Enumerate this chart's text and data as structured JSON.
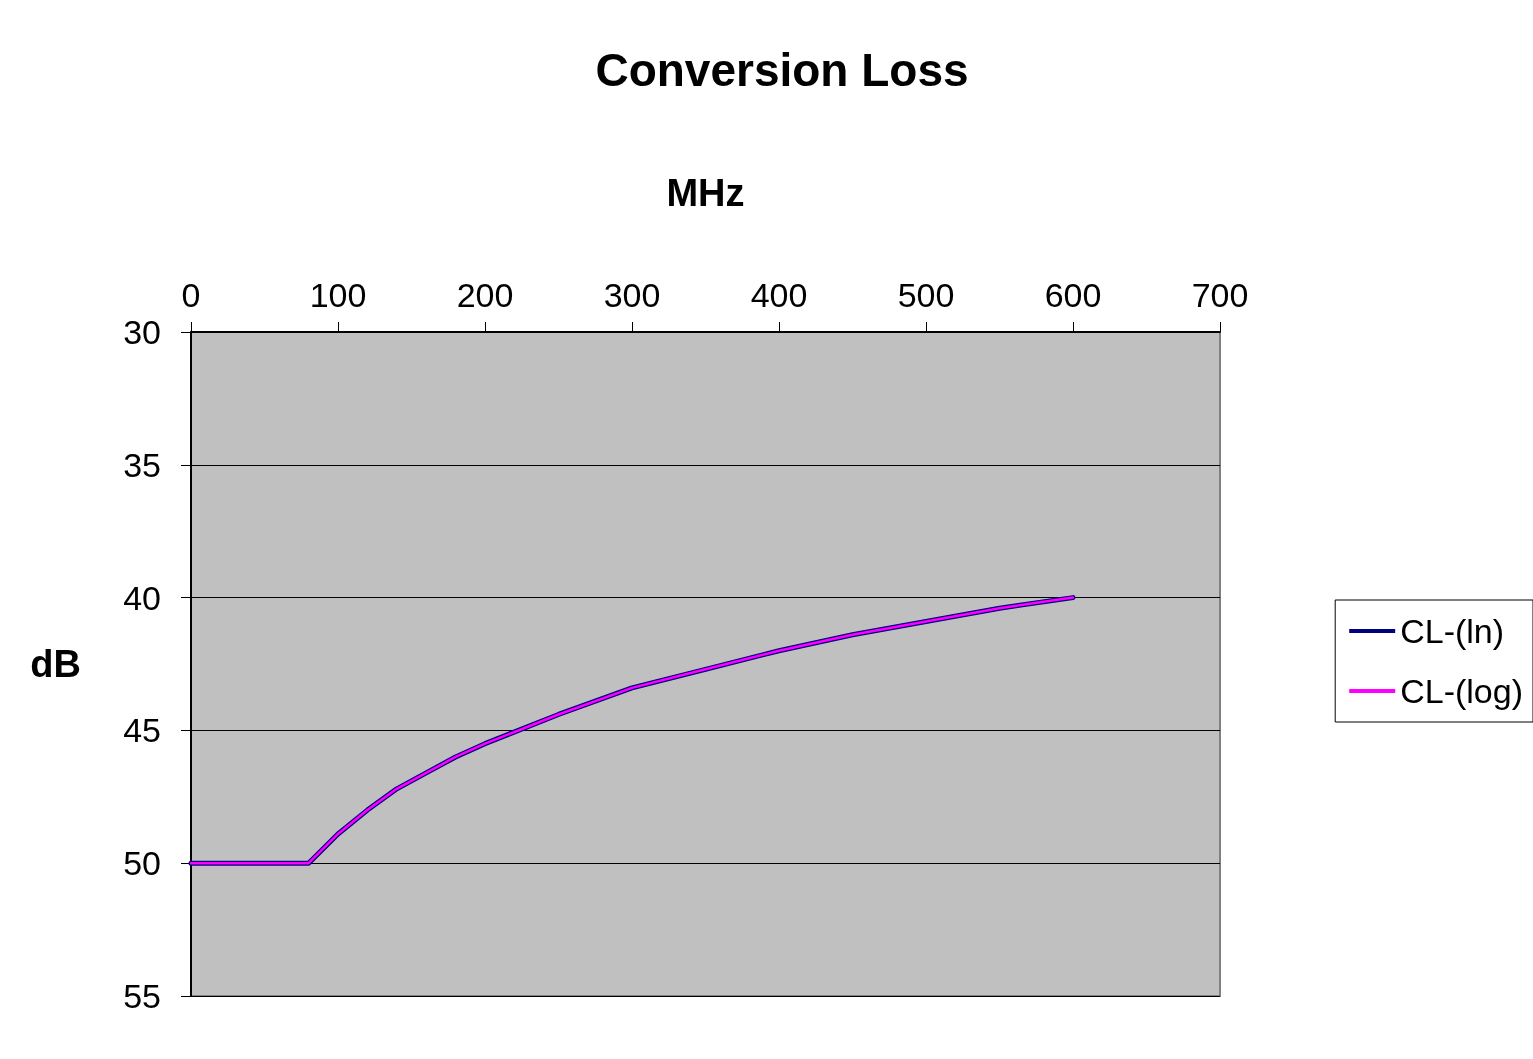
{
  "chart_data": {
    "type": "line",
    "title": "Conversion Loss",
    "xlabel": "MHz",
    "ylabel": "dB",
    "x": [
      0,
      80,
      100,
      120,
      140,
      160,
      180,
      200,
      250,
      300,
      350,
      400,
      450,
      500,
      550,
      600
    ],
    "series": [
      {
        "name": "CL-(ln)",
        "color": "#000080",
        "values": [
          50,
          50,
          48.9,
          48,
          47.2,
          46.6,
          46,
          45.5,
          44.4,
          43.4,
          42.7,
          42,
          41.4,
          40.9,
          40.4,
          40
        ]
      },
      {
        "name": "CL-(log)",
        "color": "#ff00ff",
        "values": [
          50,
          50,
          48.9,
          48,
          47.2,
          46.6,
          46,
          45.5,
          44.4,
          43.4,
          42.7,
          42,
          41.4,
          40.9,
          40.4,
          40
        ]
      }
    ],
    "xlim": [
      0,
      700
    ],
    "xticks": [
      0,
      100,
      200,
      300,
      400,
      500,
      600,
      700
    ],
    "ylim": [
      55,
      30
    ],
    "yticks": [
      30,
      35,
      40,
      45,
      50,
      55
    ],
    "grid": "y",
    "legend": "right",
    "marker": "none",
    "line_style": "solid"
  }
}
